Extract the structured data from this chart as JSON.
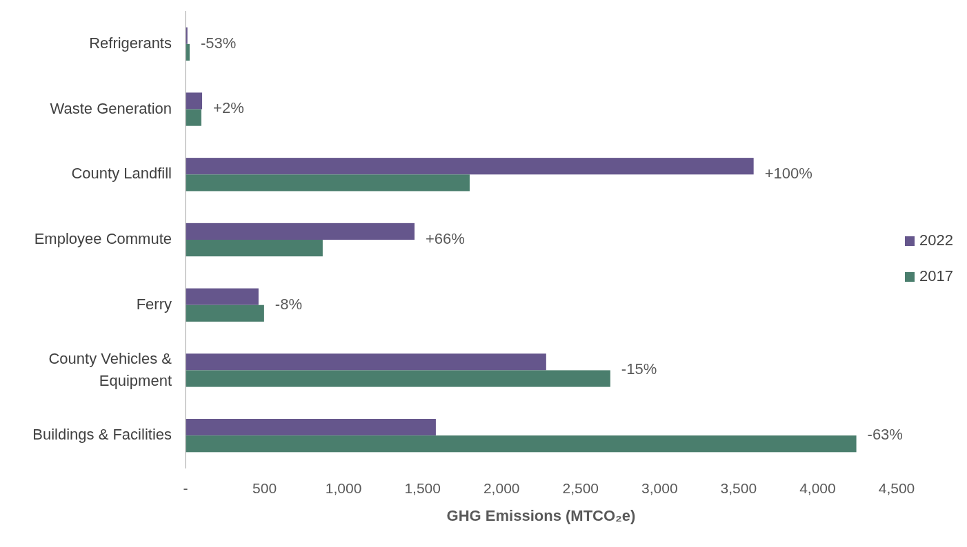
{
  "chart_data": {
    "type": "bar",
    "orientation": "horizontal",
    "xlabel": "GHG Emissions (MTCO₂e)",
    "categories": [
      "Refrigerants",
      "Waste Generation",
      "County Landfill",
      "Employee Commute",
      "Ferry",
      "County Vehicles & Equipment",
      "Buildings & Facilities"
    ],
    "series": [
      {
        "name": "2022",
        "color": "#65568c",
        "values": [
          12,
          105,
          3595,
          1449,
          462,
          2282,
          1584
        ]
      },
      {
        "name": "2017",
        "color": "#4a7e6d",
        "values": [
          26,
          100,
          1798,
          868,
          497,
          2688,
          4245
        ]
      }
    ],
    "xlim": [
      0,
      4500
    ],
    "xticks": [
      {
        "value": 0,
        "label": "-"
      },
      500,
      {
        "value": 1000,
        "label": "1,000"
      },
      {
        "value": 1500,
        "label": "1,500"
      },
      {
        "value": 2000,
        "label": "2,000"
      },
      {
        "value": 2500,
        "label": "2,500"
      },
      {
        "value": 3000,
        "label": "3,000"
      },
      {
        "value": 3500,
        "label": "3,500"
      },
      {
        "value": 4000,
        "label": "4,000"
      },
      {
        "value": 4500,
        "label": "4,500"
      }
    ],
    "annotations": [
      {
        "text": "-53%",
        "x": 26,
        "y": "Refrigerants"
      },
      {
        "text": "+2%",
        "x": 105,
        "y": "Waste Generation"
      },
      {
        "text": "+100%",
        "x": 3595,
        "y": "County Landfill"
      },
      {
        "text": "+66%",
        "x": 1449,
        "y": "Employee Commute"
      },
      {
        "text": "-8%",
        "x": 497,
        "y": "Ferry"
      },
      {
        "text": "-15%",
        "x": 2688,
        "y": "County Vehicles & Equipment"
      },
      {
        "text": "-63%",
        "x": 4245,
        "y": "Buildings & Facilities"
      }
    ],
    "legend": "right",
    "grid": false
  }
}
